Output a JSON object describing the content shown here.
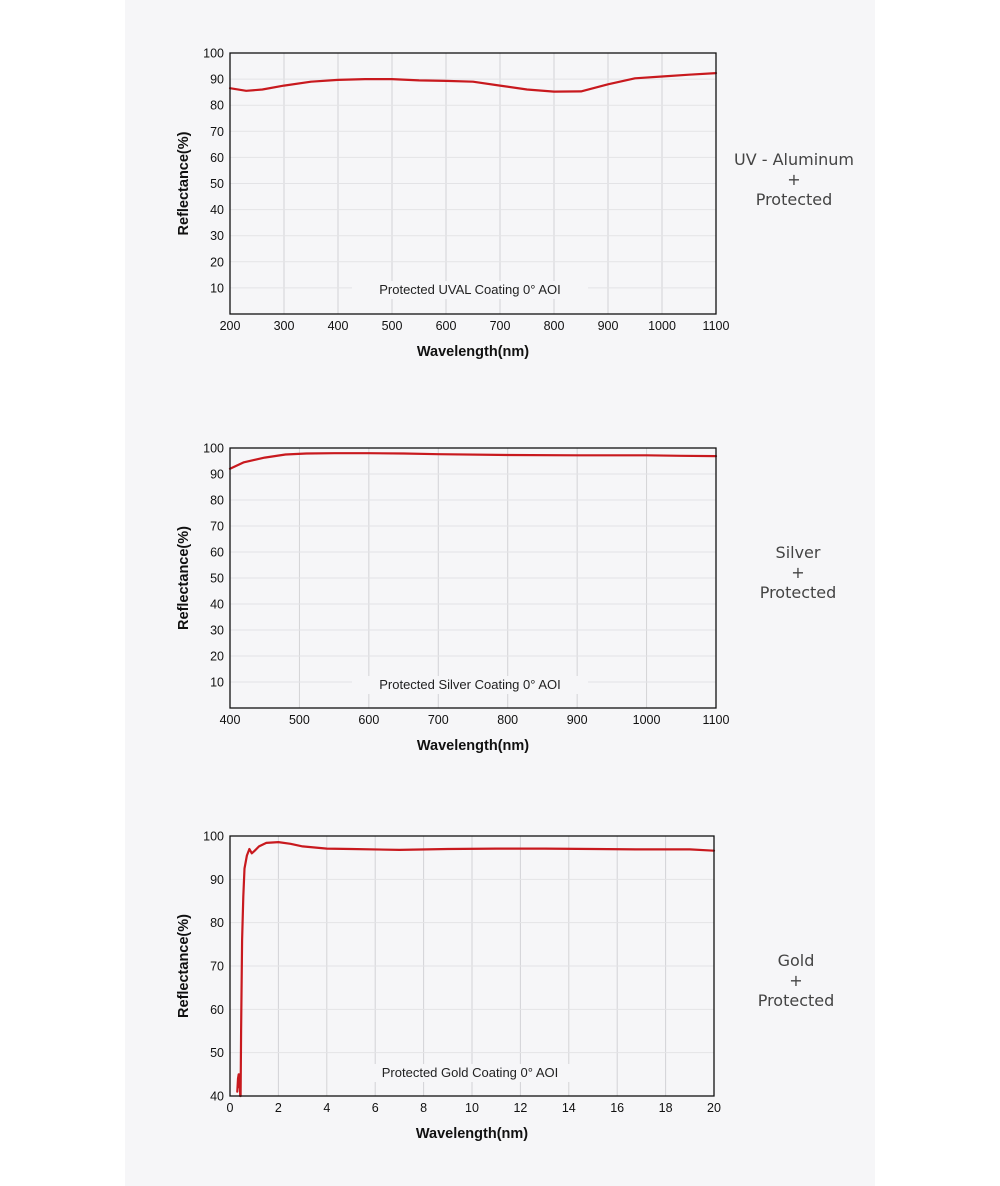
{
  "colors": {
    "curve": "#c8191e",
    "axis": "#111111",
    "grid": "#d3d3d6",
    "plot_bg": "#f6f6f8"
  },
  "charts": [
    {
      "side_label": {
        "line1": "UV - Aluminum",
        "line2": "+",
        "line3": "Protected"
      }
    },
    {
      "side_label": {
        "line1": "Silver",
        "line2": "+",
        "line3": "Protected"
      }
    },
    {
      "side_label": {
        "line1": "Gold",
        "line2": "+",
        "line3": "Protected"
      }
    }
  ],
  "chart_data": [
    {
      "type": "line",
      "title": "",
      "annotation": "Protected UVAL Coating  0°  AOI",
      "xlabel": "Wavelength(nm)",
      "ylabel": "Reflectance(%)",
      "xlim": [
        200,
        1100
      ],
      "ylim": [
        0,
        100
      ],
      "xticks": [
        200,
        300,
        400,
        500,
        600,
        700,
        800,
        900,
        1000,
        1100
      ],
      "yticks": [
        10,
        20,
        30,
        40,
        50,
        60,
        70,
        80,
        90,
        100
      ],
      "x_gridlines": [
        300,
        400,
        500,
        600,
        700,
        800,
        900,
        1000
      ],
      "series": [
        {
          "name": "Protected UVAL Coating",
          "x": [
            200,
            230,
            260,
            300,
            350,
            400,
            450,
            500,
            550,
            600,
            650,
            700,
            750,
            800,
            850,
            900,
            950,
            1000,
            1050,
            1100
          ],
          "y": [
            86.5,
            85.5,
            86.0,
            87.5,
            89.0,
            89.7,
            90.0,
            90.0,
            89.5,
            89.3,
            89.0,
            87.5,
            86.0,
            85.2,
            85.3,
            88.0,
            90.3,
            91.0,
            91.7,
            92.3
          ]
        }
      ]
    },
    {
      "type": "line",
      "title": "",
      "annotation": "Protected Silver Coating  0°  AOI",
      "xlabel": "Wavelength(nm)",
      "ylabel": "Reflectance(%)",
      "xlim": [
        400,
        1100
      ],
      "ylim": [
        0,
        100
      ],
      "xticks": [
        400,
        500,
        600,
        700,
        800,
        900,
        1000,
        1100
      ],
      "yticks": [
        10,
        20,
        30,
        40,
        50,
        60,
        70,
        80,
        90,
        100
      ],
      "x_gridlines": [
        500,
        600,
        700,
        800,
        900,
        1000
      ],
      "series": [
        {
          "name": "Protected Silver Coating",
          "x": [
            400,
            420,
            450,
            480,
            510,
            550,
            600,
            650,
            700,
            800,
            900,
            1000,
            1050,
            1100
          ],
          "y": [
            92.0,
            94.5,
            96.3,
            97.5,
            97.9,
            98.0,
            98.0,
            97.9,
            97.6,
            97.3,
            97.2,
            97.2,
            97.0,
            96.9
          ]
        }
      ]
    },
    {
      "type": "line",
      "title": "",
      "annotation": "Protected Gold Coating  0°  AOI",
      "xlabel": "Wavelength(nm)",
      "ylabel": "Reflectance(%)",
      "xlim": [
        0,
        20
      ],
      "ylim": [
        40,
        100
      ],
      "xticks": [
        0,
        2,
        4,
        6,
        8,
        10,
        12,
        14,
        16,
        18,
        20
      ],
      "yticks": [
        40,
        50,
        60,
        70,
        80,
        90,
        100
      ],
      "x_gridlines": [
        2,
        4,
        6,
        8,
        10,
        12,
        14,
        16,
        18
      ],
      "series": [
        {
          "name": "Protected Gold Coating",
          "x": [
            0.3,
            0.33,
            0.36,
            0.38,
            0.4,
            0.42,
            0.44,
            0.46,
            0.5,
            0.55,
            0.6,
            0.7,
            0.8,
            0.9,
            1.0,
            1.2,
            1.5,
            2.0,
            2.5,
            3.0,
            4.0,
            5.0,
            7.0,
            9.0,
            11.0,
            13.0,
            15.0,
            17.0,
            19.0,
            20.0
          ],
          "y": [
            41.0,
            44.0,
            45.0,
            42.0,
            45.0,
            40.0,
            40.0,
            55.0,
            76.0,
            86.0,
            92.5,
            95.5,
            97.0,
            96.0,
            96.5,
            97.6,
            98.4,
            98.6,
            98.2,
            97.6,
            97.1,
            97.0,
            96.8,
            97.0,
            97.1,
            97.1,
            97.0,
            96.9,
            96.9,
            96.6
          ]
        }
      ]
    }
  ]
}
